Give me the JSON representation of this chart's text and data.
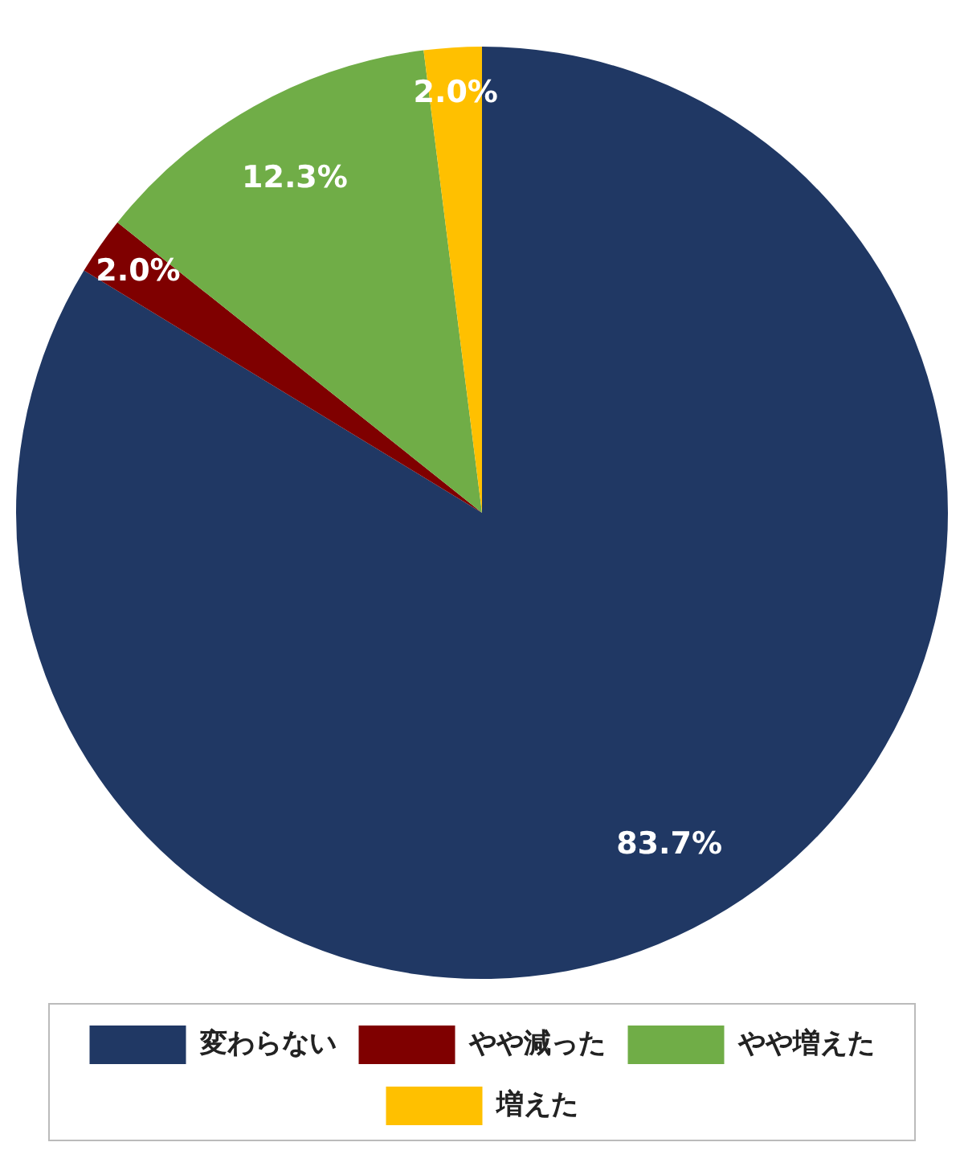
{
  "chart_data": {
    "type": "pie",
    "categories": [
      "変わらない",
      "やや減った",
      "やや増えた",
      "増えた"
    ],
    "values": [
      83.7,
      2.0,
      12.3,
      2.0
    ],
    "colors": [
      "#203864",
      "#7f0000",
      "#70ad47",
      "#ffc000"
    ],
    "value_labels": [
      "83.7%",
      "2.0%",
      "12.3%",
      "2.0%"
    ],
    "legend": "bottom"
  }
}
